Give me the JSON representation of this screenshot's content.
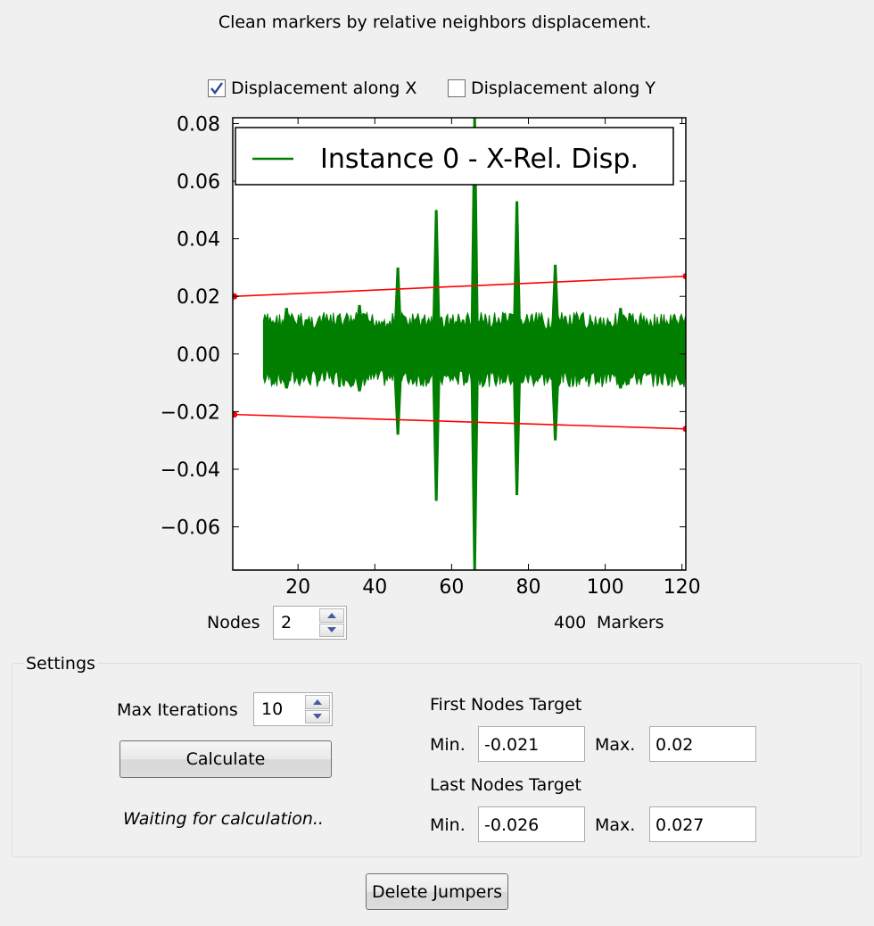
{
  "window": {
    "title": "Clean markers by relative neighbors displacement."
  },
  "options": {
    "disp_x": {
      "label": "Displacement along X",
      "checked": true
    },
    "disp_y": {
      "label": "Displacement along Y",
      "checked": false
    }
  },
  "chart_data": {
    "type": "line",
    "xlim": [
      3,
      121
    ],
    "ylim": [
      -0.075,
      0.082
    ],
    "x_ticks": [
      "20",
      "40",
      "60",
      "80",
      "100",
      "120"
    ],
    "x_tick_values": [
      20,
      40,
      60,
      80,
      100,
      120
    ],
    "y_ticks": [
      "0.08",
      "0.06",
      "0.04",
      "0.02",
      "0.00",
      "−0.02",
      "−0.04",
      "−0.06"
    ],
    "y_tick_values": [
      0.08,
      0.06,
      0.04,
      0.02,
      0.0,
      -0.02,
      -0.04,
      -0.06
    ],
    "legend": {
      "label": "Instance 0 - X-Rel. Disp.",
      "position": "top"
    },
    "series": [
      {
        "name": "Instance 0 - X-Rel. Disp.",
        "color": "#007f00",
        "band": {
          "x_start": 11,
          "x_end": 121,
          "upper": 0.0145,
          "lower": -0.0115
        },
        "spikes": [
          {
            "x": 17,
            "hi": 0.016,
            "lo": -0.012
          },
          {
            "x": 36,
            "hi": 0.017,
            "lo": -0.013
          },
          {
            "x": 46,
            "hi": 0.03,
            "lo": -0.028
          },
          {
            "x": 56,
            "hi": 0.05,
            "lo": -0.051
          },
          {
            "x": 66,
            "hi": 0.082,
            "lo": -0.075
          },
          {
            "x": 77,
            "hi": 0.053,
            "lo": -0.049
          },
          {
            "x": 87,
            "hi": 0.031,
            "lo": -0.03
          },
          {
            "x": 104,
            "hi": 0.016,
            "lo": -0.012
          }
        ]
      },
      {
        "name": "",
        "color": "#ff0000",
        "x": [
          3.4,
          121
        ],
        "y": [
          0.02,
          0.027
        ]
      },
      {
        "name": "",
        "color": "#ff0000",
        "x": [
          3.4,
          121
        ],
        "y": [
          -0.021,
          -0.026
        ]
      }
    ]
  },
  "nodes": {
    "label": "Nodes",
    "value": "2"
  },
  "markers": {
    "count": "400",
    "label": "Markers"
  },
  "settings": {
    "title": "Settings",
    "max_iterations": {
      "label": "Max Iterations",
      "value": "10"
    },
    "calculate_label": "Calculate",
    "status": "Waiting for calculation..",
    "first_nodes": {
      "title": "First Nodes Target",
      "min_label": "Min.",
      "min_value": "-0.021",
      "max_label": "Max.",
      "max_value": "0.02"
    },
    "last_nodes": {
      "title": "Last Nodes Target",
      "min_label": "Min.",
      "min_value": "-0.026",
      "max_label": "Max.",
      "max_value": "0.027"
    }
  },
  "delete_jumpers_label": "Delete Jumpers"
}
